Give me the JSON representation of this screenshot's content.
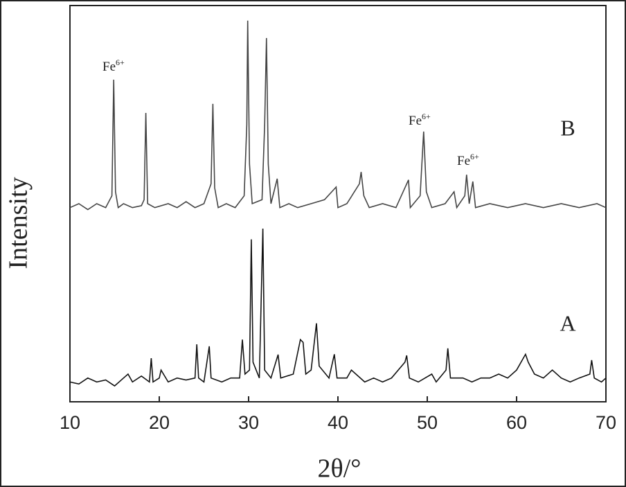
{
  "chart_data": {
    "type": "line",
    "xlabel": "2θ/°",
    "ylabel": "Intensity",
    "xlim": [
      10,
      70
    ],
    "xticks": [
      10,
      20,
      30,
      40,
      50,
      60,
      70
    ],
    "ylim": [
      0,
      100
    ],
    "series": [
      {
        "name": "A",
        "color": "#111111",
        "x": [
          10,
          11,
          12,
          13,
          14,
          15,
          16,
          16.5,
          17,
          18,
          18.9,
          19.1,
          19.3,
          20,
          20.2,
          21,
          22,
          23,
          24,
          24.2,
          24.4,
          25,
          25.6,
          25.8,
          27,
          28,
          29,
          29.3,
          29.6,
          30.1,
          30.3,
          30.5,
          31.2,
          31.6,
          31.8,
          32.5,
          33.3,
          33.6,
          35,
          35.8,
          36.1,
          36.4,
          37,
          37.4,
          37.6,
          37.9,
          39,
          39.6,
          39.9,
          41,
          41.5,
          43,
          44,
          45,
          46,
          47.5,
          47.7,
          48,
          49,
          50.5,
          51,
          52.1,
          52.3,
          52.6,
          54,
          55,
          56,
          57,
          58,
          59,
          60,
          61,
          61.3,
          62,
          63,
          64,
          65,
          66,
          67,
          68.2,
          68.4,
          68.7,
          69.5,
          70
        ],
        "values": [
          5,
          4.5,
          6,
          5,
          5.5,
          4,
          6,
          7,
          5,
          6.5,
          5,
          11,
          5,
          6,
          8,
          5,
          6,
          5.5,
          6,
          14.5,
          6,
          5,
          14,
          6,
          5,
          6,
          6,
          15.7,
          7,
          8,
          41,
          10,
          6,
          43.7,
          8,
          6,
          11.9,
          6,
          7,
          15.7,
          15,
          7,
          8,
          16,
          19.8,
          9,
          6,
          12,
          6,
          6,
          8,
          5,
          6,
          5,
          6,
          10,
          11.7,
          6,
          5,
          7,
          5,
          8,
          13.5,
          6,
          6,
          5,
          6,
          6,
          7,
          6,
          8,
          12,
          10,
          7,
          6,
          8,
          6,
          5,
          6,
          7,
          10.5,
          6,
          5,
          6
        ]
      },
      {
        "name": "B",
        "color": "#444444",
        "x": [
          10,
          11,
          12,
          13,
          14,
          14.7,
          14.9,
          15.1,
          15.4,
          16,
          17,
          18,
          18.3,
          18.5,
          18.7,
          19.5,
          21,
          22,
          23,
          24,
          25,
          25.8,
          26,
          26.2,
          26.6,
          27.5,
          28.5,
          29.5,
          29.8,
          29.9,
          30.1,
          30.4,
          31.5,
          31.8,
          32,
          32.2,
          32.5,
          33.2,
          33.5,
          34.5,
          35.5,
          37,
          38.5,
          39.8,
          40,
          41,
          42.4,
          42.6,
          42.9,
          43.5,
          45,
          46.5,
          47.9,
          48.1,
          49.2,
          49.6,
          49.9,
          50.5,
          52,
          53,
          53.3,
          54.2,
          54.4,
          54.7,
          55.1,
          55.4,
          57,
          59,
          61,
          63,
          65,
          67,
          69,
          70
        ],
        "values": [
          49,
          50,
          48.5,
          50,
          49,
          52,
          81.3,
          53,
          49,
          50,
          49,
          49.5,
          51,
          72.9,
          50,
          49,
          50,
          49,
          50.5,
          49,
          50,
          55,
          75.2,
          54,
          49,
          50,
          49,
          52,
          70,
          96.2,
          60,
          50,
          51,
          70,
          91.8,
          60,
          50,
          56.3,
          49,
          50,
          49,
          50,
          51,
          54.2,
          49,
          50,
          55,
          58,
          52,
          49,
          50,
          49,
          56,
          49,
          52,
          68.2,
          53,
          49,
          50,
          53,
          49,
          52,
          57.3,
          50,
          55.6,
          49,
          50,
          49,
          50,
          49,
          50,
          49,
          50,
          49
        ]
      }
    ],
    "annotations": [
      {
        "text": "Fe",
        "sup": "6+"
      },
      {
        "text": "Fe",
        "sup": "6+"
      },
      {
        "text": "Fe",
        "sup": "6+"
      }
    ]
  }
}
